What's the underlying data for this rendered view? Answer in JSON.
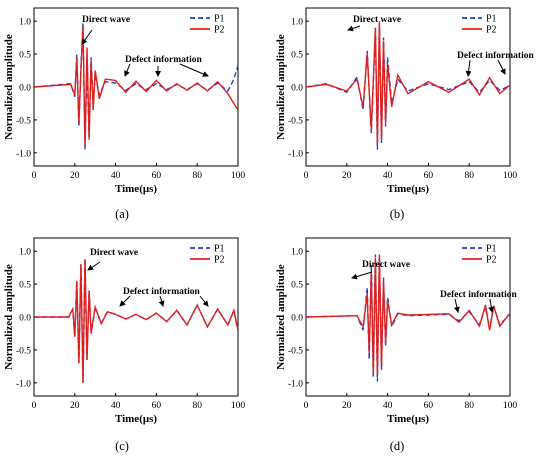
{
  "chart_data": [
    {
      "type": "line",
      "caption": "(a)",
      "xlabel": "Time(μs)",
      "ylabel": "Normalized amplitude",
      "xlim": [
        0,
        100
      ],
      "ylim": [
        -1.2,
        1.2
      ],
      "xticks": [
        "0",
        "20",
        "40",
        "60",
        "80",
        "100"
      ],
      "yticks": [
        "-1.0",
        "-0.5",
        "0.0",
        "0.5",
        "1.0"
      ],
      "legend": "top-right",
      "series": [
        {
          "name": "P1",
          "color": "#1f3fd6",
          "style": "dashed",
          "x": [
            0,
            18,
            20,
            21,
            22,
            23,
            24,
            25,
            26,
            27,
            28,
            29,
            30,
            32,
            35,
            40,
            45,
            50,
            55,
            60,
            65,
            70,
            75,
            80,
            85,
            90,
            95,
            98,
            100
          ],
          "y": [
            0.0,
            0.05,
            -0.15,
            0.5,
            -0.6,
            0.3,
            0.98,
            -0.95,
            0.35,
            -0.75,
            0.45,
            -0.25,
            0.2,
            -0.12,
            0.08,
            0.06,
            -0.05,
            0.05,
            -0.04,
            0.05,
            -0.04,
            0.04,
            -0.04,
            0.05,
            -0.05,
            0.06,
            -0.06,
            0.12,
            0.33
          ]
        },
        {
          "name": "P2",
          "color": "#e0201b",
          "style": "solid",
          "x": [
            0,
            18,
            20,
            21,
            22,
            23,
            24,
            25,
            26,
            27,
            28,
            29,
            30,
            32,
            35,
            40,
            45,
            50,
            55,
            60,
            65,
            70,
            75,
            80,
            85,
            90,
            95,
            98,
            100
          ],
          "y": [
            0.0,
            0.04,
            -0.12,
            0.45,
            -0.55,
            0.25,
            0.92,
            -0.9,
            0.6,
            -0.8,
            0.4,
            -0.35,
            0.25,
            -0.18,
            0.12,
            0.1,
            -0.08,
            0.09,
            -0.07,
            0.1,
            -0.06,
            0.05,
            -0.05,
            0.06,
            -0.06,
            0.08,
            -0.1,
            -0.25,
            -0.35
          ]
        }
      ],
      "annotations": [
        "Direct wave",
        "Defect information"
      ]
    },
    {
      "type": "line",
      "caption": "(b)",
      "xlabel": "Time(μs)",
      "ylabel": "Normalized amplitude",
      "xlim": [
        0,
        100
      ],
      "ylim": [
        -1.2,
        1.2
      ],
      "xticks": [
        "0",
        "20",
        "40",
        "60",
        "80",
        "100"
      ],
      "yticks": [
        "-1.0",
        "-0.5",
        "0.0",
        "0.5",
        "1.0"
      ],
      "legend": "top-right",
      "series": [
        {
          "name": "P1",
          "color": "#1f3fd6",
          "style": "dashed",
          "x": [
            0,
            10,
            20,
            25,
            28,
            30,
            32,
            34,
            35,
            36,
            37,
            38,
            39,
            40,
            42,
            45,
            50,
            60,
            70,
            80,
            85,
            90,
            95,
            100
          ],
          "y": [
            0.0,
            0.05,
            -0.08,
            0.15,
            -0.35,
            0.55,
            -0.7,
            0.85,
            -0.95,
            0.92,
            -0.85,
            0.75,
            -0.6,
            0.45,
            -0.25,
            0.12,
            -0.06,
            0.05,
            -0.04,
            0.08,
            -0.08,
            0.1,
            -0.05,
            0.02
          ]
        },
        {
          "name": "P2",
          "color": "#e0201b",
          "style": "solid",
          "x": [
            0,
            10,
            20,
            25,
            28,
            30,
            32,
            34,
            35,
            36,
            37,
            38,
            39,
            40,
            42,
            45,
            50,
            60,
            70,
            80,
            85,
            90,
            95,
            100
          ],
          "y": [
            0.0,
            0.04,
            -0.06,
            0.12,
            -0.3,
            0.5,
            -0.65,
            0.9,
            -0.85,
            1.0,
            -0.8,
            0.7,
            -0.55,
            0.35,
            -0.3,
            0.18,
            -0.1,
            0.08,
            -0.08,
            0.12,
            -0.12,
            0.14,
            -0.1,
            0.03
          ]
        }
      ],
      "annotations": [
        "Direct wave",
        "Defect information"
      ]
    },
    {
      "type": "line",
      "caption": "(c)",
      "xlabel": "Time(μs)",
      "ylabel": "Normalized amplitude",
      "xlim": [
        0,
        100
      ],
      "ylim": [
        -1.2,
        1.2
      ],
      "xticks": [
        "0",
        "20",
        "40",
        "60",
        "80",
        "100"
      ],
      "yticks": [
        "-1.0",
        "-0.5",
        "0.0",
        "0.5",
        "1.0"
      ],
      "legend": "top-right",
      "series": [
        {
          "name": "P1",
          "color": "#1f3fd6",
          "style": "dashed",
          "x": [
            0,
            17,
            19,
            20,
            21,
            22,
            23,
            24,
            25,
            26,
            27,
            28,
            30,
            33,
            36,
            40,
            45,
            50,
            55,
            60,
            65,
            70,
            75,
            80,
            85,
            90,
            95,
            98,
            100
          ],
          "y": [
            0.0,
            0.0,
            0.12,
            -0.3,
            0.55,
            -0.7,
            0.8,
            -1.0,
            0.88,
            -0.65,
            0.4,
            -0.25,
            0.15,
            -0.1,
            0.08,
            0.04,
            -0.03,
            0.04,
            -0.04,
            0.06,
            -0.07,
            0.1,
            -0.12,
            0.18,
            -0.15,
            0.12,
            -0.12,
            0.1,
            -0.2
          ]
        },
        {
          "name": "P2",
          "color": "#e0201b",
          "style": "solid",
          "x": [
            0,
            17,
            19,
            20,
            21,
            22,
            23,
            24,
            25,
            26,
            27,
            28,
            30,
            33,
            36,
            40,
            45,
            50,
            55,
            60,
            65,
            70,
            75,
            80,
            85,
            90,
            95,
            98,
            100
          ],
          "y": [
            0.0,
            0.0,
            0.12,
            -0.3,
            0.55,
            -0.7,
            0.8,
            -1.0,
            0.88,
            -0.65,
            0.4,
            -0.25,
            0.15,
            -0.1,
            0.08,
            0.04,
            -0.03,
            0.04,
            -0.04,
            0.06,
            -0.07,
            0.1,
            -0.12,
            0.18,
            -0.15,
            0.12,
            -0.12,
            0.1,
            -0.2
          ]
        }
      ],
      "annotations": [
        "Direct wave",
        "Defect information"
      ]
    },
    {
      "type": "line",
      "caption": "(d)",
      "xlabel": "Time(μs)",
      "ylabel": "Normalized amplitude",
      "xlim": [
        0,
        100
      ],
      "ylim": [
        -1.2,
        1.2
      ],
      "xticks": [
        "0",
        "20",
        "40",
        "60",
        "80",
        "100"
      ],
      "yticks": [
        "-1.0",
        "-0.5",
        "0.0",
        "0.5",
        "1.0"
      ],
      "legend": "top-right",
      "series": [
        {
          "name": "P1",
          "color": "#1f3fd6",
          "style": "dashed",
          "x": [
            0,
            25,
            28,
            30,
            31,
            32,
            33,
            34,
            35,
            36,
            37,
            38,
            39,
            40,
            42,
            45,
            50,
            60,
            70,
            75,
            80,
            85,
            88,
            90,
            92,
            95,
            100
          ],
          "y": [
            0.0,
            0.02,
            -0.2,
            0.45,
            -0.65,
            0.8,
            -0.92,
            0.95,
            -0.98,
            0.9,
            -0.8,
            0.6,
            -0.45,
            0.3,
            -0.15,
            0.05,
            0.02,
            0.03,
            0.04,
            -0.06,
            0.08,
            -0.12,
            0.15,
            -0.18,
            0.16,
            -0.12,
            0.05
          ]
        },
        {
          "name": "P2",
          "color": "#e0201b",
          "style": "solid",
          "x": [
            0,
            25,
            28,
            30,
            31,
            32,
            33,
            34,
            35,
            36,
            37,
            38,
            39,
            40,
            42,
            45,
            50,
            60,
            70,
            75,
            80,
            85,
            88,
            90,
            92,
            95,
            100
          ],
          "y": [
            0.0,
            0.02,
            -0.15,
            0.35,
            -0.55,
            0.7,
            -0.85,
            0.9,
            -0.9,
            0.95,
            -0.75,
            0.55,
            -0.4,
            0.25,
            -0.12,
            0.06,
            0.03,
            0.04,
            0.05,
            -0.08,
            0.1,
            -0.14,
            0.18,
            -0.2,
            0.17,
            -0.14,
            0.06
          ]
        }
      ],
      "annotations": [
        "Direct wave",
        "Defect information"
      ]
    }
  ]
}
